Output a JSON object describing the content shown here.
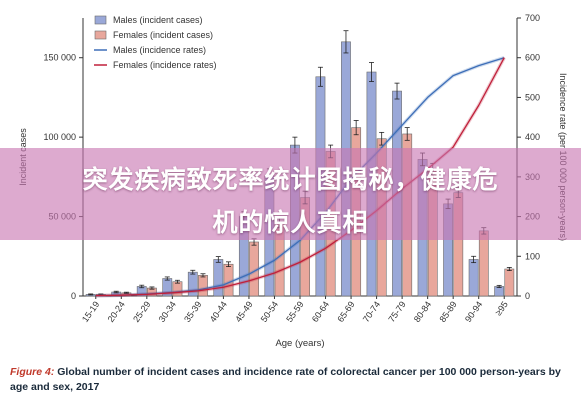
{
  "chart_data": {
    "type": "bar",
    "categories": [
      "15-19",
      "20-24",
      "25-29",
      "30-34",
      "35-39",
      "40-44",
      "45-49",
      "50-54",
      "55-59",
      "60-64",
      "65-69",
      "70-74",
      "75-79",
      "80-84",
      "85-89",
      "90-94",
      "≥95"
    ],
    "series": [
      {
        "name": "Males (incident cases)",
        "axis": "left",
        "kind": "bar",
        "color": "#9aa8d8",
        "values": [
          1000,
          2500,
          6000,
          11000,
          15000,
          23000,
          50000,
          76000,
          95000,
          138000,
          160000,
          141000,
          129000,
          86000,
          58000,
          23000,
          6000
        ],
        "errors": [
          300,
          500,
          800,
          1000,
          1200,
          1800,
          3000,
          4000,
          5000,
          6000,
          7000,
          6000,
          5000,
          4000,
          3000,
          2000,
          700
        ]
      },
      {
        "name": "Females (incident cases)",
        "axis": "left",
        "kind": "bar",
        "color": "#e8a79c",
        "values": [
          1000,
          2000,
          5000,
          9000,
          13000,
          20000,
          34000,
          46000,
          62000,
          91000,
          106000,
          99000,
          102000,
          80000,
          65000,
          41000,
          17000
        ],
        "errors": [
          300,
          400,
          700,
          900,
          1000,
          1500,
          2000,
          3000,
          4000,
          4000,
          4500,
          4000,
          4000,
          3500,
          3000,
          2000,
          1000
        ]
      },
      {
        "name": "Males (incidence rates)",
        "axis": "right",
        "kind": "line",
        "color": "#3d6eb8",
        "values": [
          1,
          2,
          5,
          9,
          15,
          28,
          55,
          90,
          140,
          210,
          295,
          360,
          430,
          500,
          555,
          580,
          600
        ]
      },
      {
        "name": "Females (incidence rates)",
        "axis": "right",
        "kind": "line",
        "color": "#c0203a",
        "values": [
          1,
          2,
          4,
          8,
          13,
          22,
          38,
          58,
          85,
          120,
          165,
          215,
          270,
          320,
          375,
          480,
          600
        ]
      }
    ],
    "xlabel": "Age (years)",
    "ylabel_left": "Incident cases",
    "ylabel_right": "Incidence rate (per 100 000 person-years)",
    "ylim_left": [
      0,
      175000
    ],
    "ylim_right": [
      0,
      700
    ],
    "yticks_left": [
      "0",
      "50 000",
      "100 000",
      "150 000"
    ],
    "yticks_right": [
      "0",
      "100",
      "200",
      "300",
      "400",
      "500",
      "600",
      "700"
    ],
    "legend_position": "top-left",
    "grid": false
  },
  "banner": {
    "line1": "突发疾病致死率统计图揭秘，健康危",
    "line2": "机的惊人真相"
  },
  "caption": {
    "figure_label": "Figure 4:",
    "text": "Global number of incident cases and incidence rate of colorectal cancer per 100 000 person-years by age and sex, 2017"
  }
}
